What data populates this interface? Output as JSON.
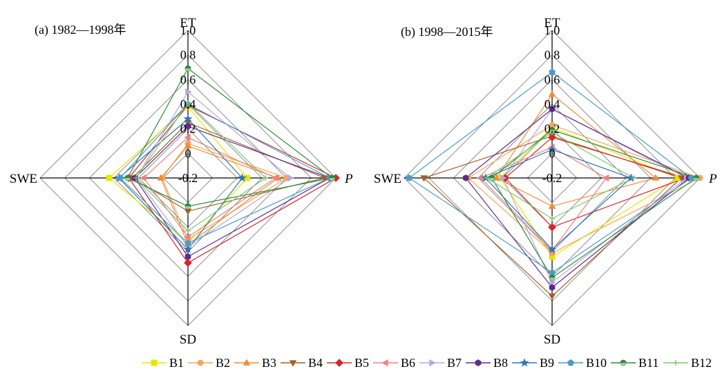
{
  "chart_data": [
    {
      "type": "radar",
      "title": "(a) 1982—1998年",
      "axes": [
        "ET",
        "P",
        "SD",
        "SWE"
      ],
      "rlim": [
        -0.2,
        1.0
      ],
      "ticks": [
        "1.0",
        "0.8",
        "0.6",
        "0.4",
        "0.2",
        "0",
        "-0.2"
      ],
      "grid": true,
      "series": [
        {
          "name": "B1",
          "values": [
            0.38,
            0.28,
            0.33,
            0.44
          ]
        },
        {
          "name": "B2",
          "values": [
            0.08,
            0.6,
            0.3,
            0.01
          ]
        },
        {
          "name": "B3",
          "values": [
            0.06,
            0.53,
            0.34,
            0.02
          ]
        },
        {
          "name": "B4",
          "values": [
            0.25,
            0.91,
            0.07,
            0.25
          ]
        },
        {
          "name": "B5",
          "values": [
            0.39,
            1.0,
            0.49,
            0.28
          ]
        },
        {
          "name": "B6",
          "values": [
            0.13,
            0.51,
            0.28,
            0.16
          ]
        },
        {
          "name": "B7",
          "values": [
            0.5,
            0.63,
            0.36,
            0.22
          ]
        },
        {
          "name": "B8",
          "values": [
            0.22,
            0.95,
            0.44,
            0.23
          ]
        },
        {
          "name": "B9",
          "values": [
            0.28,
            0.24,
            0.38,
            0.36
          ]
        },
        {
          "name": "B10",
          "values": [
            0.4,
            0.95,
            0.33,
            0.35
          ]
        },
        {
          "name": "B11",
          "values": [
            0.69,
            0.97,
            0.03,
            0.29
          ]
        },
        {
          "name": "B12",
          "values": [
            0.41,
            0.43,
            0.23,
            0.22
          ]
        }
      ]
    },
    {
      "type": "radar",
      "title": "(b) 1998—2015年",
      "axes": [
        "ET",
        "P",
        "SD",
        "SWE"
      ],
      "rlim": [
        -0.2,
        1.0
      ],
      "ticks": [
        "1.0",
        "0.8",
        "0.6",
        "0.4",
        "0.2",
        "0",
        "-0.2"
      ],
      "grid": true,
      "series": [
        {
          "name": "B1",
          "values": [
            0.21,
            0.82,
            0.44,
            0.22
          ]
        },
        {
          "name": "B2",
          "values": [
            0.23,
            1.0,
            0.41,
            0.48
          ]
        },
        {
          "name": "B3",
          "values": [
            0.48,
            0.64,
            0.03,
            0.25
          ]
        },
        {
          "name": "B4",
          "values": [
            0.14,
            0.85,
            0.76,
            0.84
          ]
        },
        {
          "name": "B5",
          "values": [
            0.13,
            0.88,
            0.2,
            0.18
          ]
        },
        {
          "name": "B6",
          "values": [
            0.05,
            0.24,
            0.39,
            0.38
          ]
        },
        {
          "name": "B7",
          "values": [
            0.36,
            0.89,
            0.65,
            0.2
          ]
        },
        {
          "name": "B8",
          "values": [
            0.36,
            0.91,
            0.69,
            0.5
          ]
        },
        {
          "name": "B9",
          "values": [
            0.03,
            0.44,
            0.38,
            0.34
          ]
        },
        {
          "name": "B10",
          "values": [
            0.66,
            0.93,
            0.57,
            0.96
          ]
        },
        {
          "name": "B11",
          "values": [
            0.19,
            0.97,
            0.61,
            0.29
          ]
        },
        {
          "name": "B12",
          "values": [
            0.17,
            0.46,
            0.13,
            0.33
          ]
        }
      ]
    }
  ],
  "legend": {
    "position": "bottom",
    "items": [
      {
        "name": "B1",
        "color": "#E6E600",
        "marker": "square"
      },
      {
        "name": "B2",
        "color": "#F5A65B",
        "marker": "circle"
      },
      {
        "name": "B3",
        "color": "#F28C38",
        "marker": "triangle-up"
      },
      {
        "name": "B4",
        "color": "#A35F2A",
        "marker": "triangle-down"
      },
      {
        "name": "B5",
        "color": "#D62728",
        "marker": "diamond"
      },
      {
        "name": "B6",
        "color": "#F08080",
        "marker": "triangle-left"
      },
      {
        "name": "B7",
        "color": "#B9A6DE",
        "marker": "triangle-right"
      },
      {
        "name": "B8",
        "color": "#5B2C8A",
        "marker": "hexagon"
      },
      {
        "name": "B9",
        "color": "#2E75B6",
        "marker": "star"
      },
      {
        "name": "B10",
        "color": "#4B9CC4",
        "marker": "pentagon"
      },
      {
        "name": "B11",
        "color": "#2E8B3A",
        "marker": "circle-half"
      },
      {
        "name": "B12",
        "color": "#7BC96F",
        "marker": "plus"
      }
    ]
  }
}
